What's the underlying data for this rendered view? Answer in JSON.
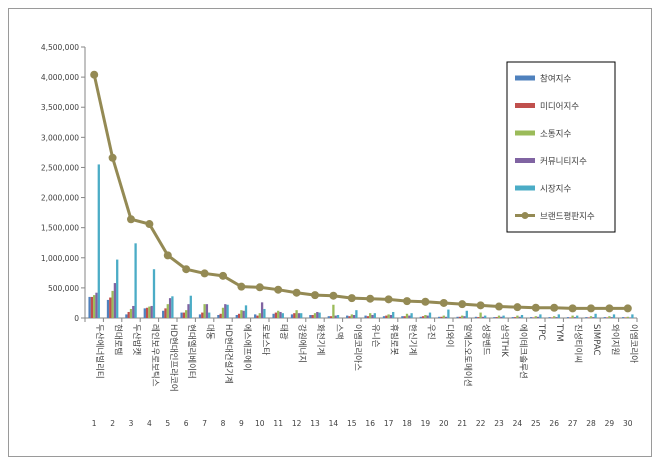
{
  "chart_data": {
    "type": "bar",
    "ylim": [
      0,
      4500000
    ],
    "yticks": [
      "0",
      "500,000",
      "1,000,000",
      "1,500,000",
      "2,000,000",
      "2,500,000",
      "3,000,000",
      "3,500,000",
      "4,000,000",
      "4,500,000"
    ],
    "grid": false,
    "legend_position": "right",
    "ranks": [
      "1",
      "2",
      "3",
      "4",
      "5",
      "6",
      "7",
      "8",
      "9",
      "10",
      "11",
      "12",
      "13",
      "14",
      "15",
      "16",
      "17",
      "18",
      "19",
      "20",
      "21",
      "22",
      "23",
      "24",
      "25",
      "26",
      "27",
      "28",
      "29",
      "30"
    ],
    "categories": [
      "두산에너빌리티",
      "현대로템",
      "두산밥캣",
      "레인보우로보틱스",
      "HD현대인프라코어",
      "현대엘리베이터",
      "대동",
      "HD현대건설기계",
      "에스에프에이",
      "로보스타",
      "태광",
      "강원에너지",
      "화천기계",
      "스맥",
      "이엠코리아스",
      "유니슨",
      "휴림로봇",
      "한신기계",
      "우진",
      "디와이",
      "알에스오토메이션",
      "성광벤드",
      "삼익THK",
      "에이테크솔루션",
      "TPC",
      "TYM",
      "진성티이씨",
      "SIMPAC",
      "와이지원",
      "이엠코리아"
    ],
    "series": [
      {
        "name": "참여지수",
        "color": "#4f81bd",
        "values": [
          350000,
          300000,
          60000,
          160000,
          120000,
          90000,
          60000,
          50000,
          50000,
          60000,
          70000,
          60000,
          50000,
          30000,
          40000,
          40000,
          30000,
          30000,
          20000,
          20000,
          20000,
          20000,
          15000,
          15000,
          15000,
          15000,
          15000,
          15000,
          15000,
          15000
        ]
      },
      {
        "name": "미디어지수",
        "color": "#c0504d",
        "values": [
          350000,
          340000,
          100000,
          170000,
          160000,
          90000,
          90000,
          70000,
          70000,
          40000,
          90000,
          80000,
          50000,
          30000,
          30000,
          30000,
          40000,
          30000,
          30000,
          20000,
          20000,
          15000,
          15000,
          15000,
          10000,
          10000,
          10000,
          10000,
          10000,
          10000
        ]
      },
      {
        "name": "소통지수",
        "color": "#9bbb59",
        "values": [
          380000,
          450000,
          150000,
          190000,
          230000,
          130000,
          230000,
          170000,
          130000,
          80000,
          120000,
          130000,
          80000,
          220000,
          60000,
          80000,
          60000,
          70000,
          50000,
          40000,
          40000,
          90000,
          40000,
          40000,
          30000,
          30000,
          40000,
          30000,
          30000,
          20000
        ]
      },
      {
        "name": "커뮤니티지수",
        "color": "#8064a2",
        "values": [
          420000,
          580000,
          200000,
          200000,
          330000,
          230000,
          230000,
          230000,
          120000,
          260000,
          100000,
          80000,
          100000,
          40000,
          50000,
          50000,
          50000,
          40000,
          40000,
          20000,
          30000,
          20000,
          20000,
          20000,
          20000,
          15000,
          15000,
          15000,
          15000,
          10000
        ]
      },
      {
        "name": "시장지수",
        "color": "#4bacc6",
        "values": [
          2550000,
          970000,
          1240000,
          810000,
          360000,
          370000,
          90000,
          220000,
          210000,
          150000,
          80000,
          80000,
          90000,
          50000,
          130000,
          80000,
          100000,
          80000,
          90000,
          140000,
          120000,
          40000,
          40000,
          50000,
          60000,
          60000,
          40000,
          70000,
          60000,
          60000
        ]
      },
      {
        "name": "브랜드평판지수",
        "color": "#948a54",
        "render": "line",
        "values": [
          4040000,
          2660000,
          1640000,
          1560000,
          1040000,
          810000,
          740000,
          700000,
          520000,
          510000,
          470000,
          420000,
          380000,
          370000,
          330000,
          320000,
          310000,
          280000,
          270000,
          250000,
          230000,
          210000,
          190000,
          180000,
          170000,
          170000,
          160000,
          160000,
          160000,
          160000
        ]
      }
    ]
  }
}
